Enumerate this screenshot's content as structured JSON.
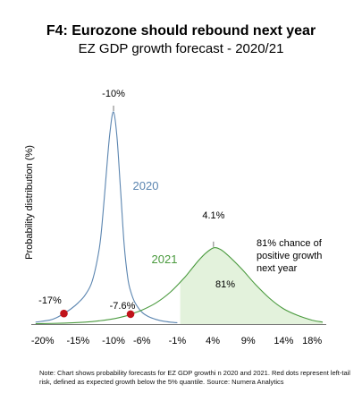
{
  "chart_data": {
    "type": "line",
    "title": "F4: Eurozone should rebound next year",
    "subtitle": "EZ GDP growth forecast - 2020/21",
    "ylabel": "Probability distribution (%)",
    "xlabel": "",
    "xlim": [
      -21.6,
      20
    ],
    "x_ticks": [
      -20,
      -15,
      -10,
      -6,
      -1,
      4,
      9,
      14,
      18
    ],
    "x_tick_labels": [
      "-20%",
      "-15%",
      "-10%",
      "-6%",
      "-1%",
      "4%",
      "9%",
      "14%",
      "18%"
    ],
    "grid": false,
    "legend": "none",
    "series": [
      {
        "name": "2020",
        "color": "#5b85b0",
        "x": [
          -21,
          -19,
          -18,
          -17,
          -16,
          -15,
          -14,
          -13,
          -12,
          -11.5,
          -11,
          -10.5,
          -10,
          -9.5,
          -9,
          -8.5,
          -8,
          -7.6,
          -7,
          -6,
          -5,
          -4,
          -3,
          -2,
          -1
        ],
        "y": [
          0.3,
          0.6,
          1.0,
          1.6,
          2.3,
          3.2,
          4.4,
          6.5,
          11.5,
          16.5,
          23.0,
          29.0,
          32.0,
          28.0,
          20.0,
          12.0,
          7.0,
          5.0,
          3.3,
          1.8,
          1.1,
          0.7,
          0.45,
          0.3,
          0.2
        ],
        "annotations": [
          {
            "label": "-10%",
            "x": -10
          }
        ]
      },
      {
        "name": "2021",
        "color": "#4a9a3e",
        "x": [
          -21,
          -17,
          -14,
          -12,
          -10,
          -8,
          -7.6,
          -6,
          -4,
          -2,
          0,
          1,
          2,
          3,
          4.1,
          5,
          6,
          8,
          10,
          12,
          14,
          16,
          18,
          19.5
        ],
        "y": [
          0.05,
          0.15,
          0.3,
          0.5,
          0.8,
          1.3,
          1.5,
          2.1,
          3.2,
          4.8,
          7.0,
          8.3,
          9.6,
          10.7,
          11.5,
          11.3,
          10.5,
          8.4,
          6.0,
          3.9,
          2.3,
          1.3,
          0.6,
          0.3
        ],
        "annotations": [
          {
            "label": "4.1%",
            "x": 4.1
          }
        ]
      }
    ],
    "shaded_region": {
      "series": "2021",
      "x_from": -0.6,
      "x_to": 19.5,
      "color": "#e3f2dc",
      "label": "81%"
    },
    "red_dots": [
      {
        "series": "2020",
        "x": -17,
        "label": "-17%"
      },
      {
        "series": "2021",
        "x": -7.6,
        "label": "-7.6%"
      }
    ],
    "dot_color": "#c0141b",
    "annotation_text": [
      "81% chance of",
      "positive growth",
      "next year"
    ],
    "note": "Note: Chart shows probability forecasts for EZ GDP growthi n 2020 and 2021. Red dots represent left-tail risk, defined as expected growth below the 5% quantile. Source: Numera Analytics"
  }
}
